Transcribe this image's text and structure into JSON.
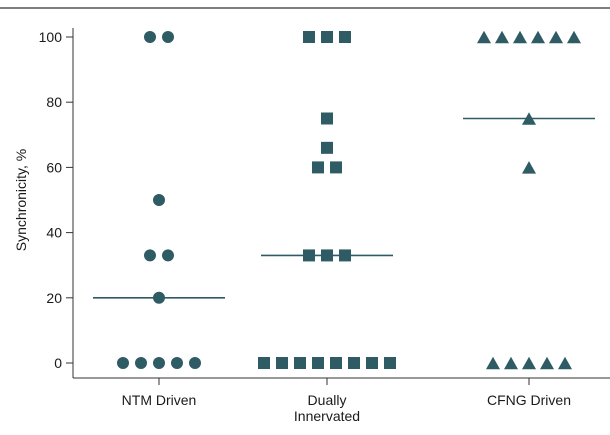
{
  "chart_data": {
    "type": "scatter",
    "ylabel": "Synchronicity, %",
    "ylim": [
      0,
      100
    ],
    "yticks": [
      0,
      20,
      40,
      60,
      80,
      100
    ],
    "grid": false,
    "marker_color": "#2f5b65",
    "categories": [
      {
        "label_lines": [
          "NTM Driven"
        ],
        "marker": "circle",
        "median": 20,
        "values": [
          100,
          100,
          50,
          33,
          33,
          20,
          0,
          0,
          0,
          0,
          0
        ]
      },
      {
        "label_lines": [
          "Dually",
          "Innervated"
        ],
        "marker": "square",
        "median": 33,
        "values": [
          100,
          100,
          100,
          75,
          66,
          60,
          60,
          33,
          33,
          33,
          0,
          0,
          0,
          0,
          0,
          0,
          0,
          0
        ]
      },
      {
        "label_lines": [
          "CFNG Driven"
        ],
        "marker": "triangle",
        "median": 75,
        "values": [
          100,
          100,
          100,
          100,
          100,
          100,
          75,
          60,
          0,
          0,
          0,
          0,
          0
        ]
      }
    ]
  }
}
